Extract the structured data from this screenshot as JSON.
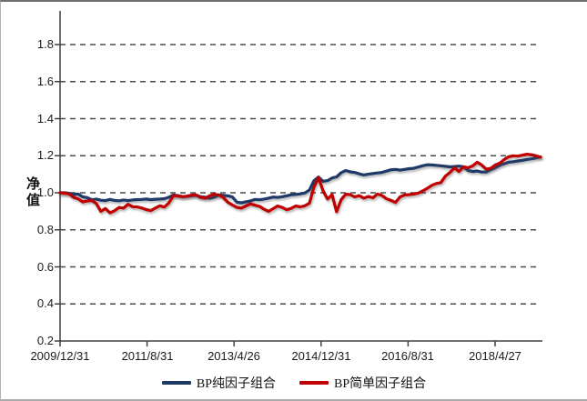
{
  "window": {
    "background": "#ffffff",
    "border_top_color": "#6d6d6d",
    "border_side_color": "#b3b3b3",
    "border_bottom_color": "#aaaaaa"
  },
  "chart_data": {
    "type": "line",
    "title": "",
    "ylabel": "净值",
    "xlabel": "",
    "ylim": [
      0.2,
      1.8
    ],
    "y_tick_step": 0.2,
    "y_tick_labels": [
      "1.8",
      "1.6",
      "1.4",
      "1.2",
      "1.0",
      "0.8",
      "0.6",
      "0.4",
      "0.2"
    ],
    "x_tick_labels": [
      "2009/12/31",
      "2011/8/31",
      "2013/4/26",
      "2014/12/31",
      "2016/8/31",
      "2018/4/27"
    ],
    "grid": "horizontal-dashed",
    "grid_color": "#4a4a4a",
    "axis_color": "#404040",
    "legend_position": "bottom",
    "series": [
      {
        "name": "BP纯因子组合",
        "color": "#1F3968",
        "values": [
          1.0,
          1.0,
          0.997,
          0.99,
          0.993,
          0.978,
          0.974,
          0.962,
          0.966,
          0.96,
          0.958,
          0.964,
          0.959,
          0.957,
          0.961,
          0.958,
          0.961,
          0.963,
          0.964,
          0.966,
          0.963,
          0.965,
          0.966,
          0.968,
          0.976,
          0.988,
          0.985,
          0.979,
          0.981,
          0.984,
          0.986,
          0.979,
          0.976,
          0.97,
          0.976,
          0.988,
          0.986,
          0.984,
          0.978,
          0.949,
          0.946,
          0.951,
          0.956,
          0.964,
          0.962,
          0.966,
          0.971,
          0.977,
          0.975,
          0.979,
          0.984,
          0.989,
          0.991,
          0.994,
          0.999,
          1.015,
          1.065,
          1.085,
          1.062,
          1.066,
          1.08,
          1.086,
          1.108,
          1.12,
          1.113,
          1.11,
          1.102,
          1.096,
          1.1,
          1.104,
          1.107,
          1.11,
          1.117,
          1.124,
          1.126,
          1.122,
          1.126,
          1.13,
          1.132,
          1.139,
          1.146,
          1.151,
          1.15,
          1.148,
          1.146,
          1.143,
          1.14,
          1.142,
          1.144,
          1.14,
          1.12,
          1.115,
          1.118,
          1.112,
          1.112,
          1.125,
          1.135,
          1.148,
          1.157,
          1.165,
          1.168,
          1.172,
          1.175,
          1.18,
          1.183,
          1.188,
          1.194
        ]
      },
      {
        "name": "BP简单因子组合",
        "color": "#C00000",
        "values": [
          1.0,
          0.998,
          0.994,
          0.975,
          0.967,
          0.951,
          0.956,
          0.959,
          0.942,
          0.9,
          0.915,
          0.892,
          0.903,
          0.921,
          0.917,
          0.938,
          0.925,
          0.924,
          0.918,
          0.909,
          0.904,
          0.917,
          0.93,
          0.923,
          0.945,
          0.985,
          0.983,
          0.979,
          0.982,
          0.987,
          0.989,
          0.975,
          0.971,
          0.984,
          0.992,
          0.988,
          0.975,
          0.949,
          0.934,
          0.921,
          0.917,
          0.929,
          0.94,
          0.933,
          0.927,
          0.911,
          0.9,
          0.914,
          0.929,
          0.921,
          0.908,
          0.916,
          0.929,
          0.924,
          0.93,
          0.944,
          1.03,
          1.082,
          1.012,
          0.966,
          0.99,
          0.898,
          0.962,
          0.992,
          0.99,
          0.978,
          0.985,
          0.971,
          0.98,
          0.973,
          0.993,
          0.986,
          0.968,
          0.959,
          0.948,
          0.978,
          0.988,
          0.99,
          0.993,
          0.998,
          1.01,
          1.024,
          1.04,
          1.05,
          1.055,
          1.09,
          1.11,
          1.135,
          1.115,
          1.14,
          1.135,
          1.145,
          1.165,
          1.15,
          1.127,
          1.132,
          1.15,
          1.16,
          1.18,
          1.195,
          1.2,
          1.198,
          1.203,
          1.208,
          1.205,
          1.2,
          1.192
        ]
      }
    ]
  }
}
